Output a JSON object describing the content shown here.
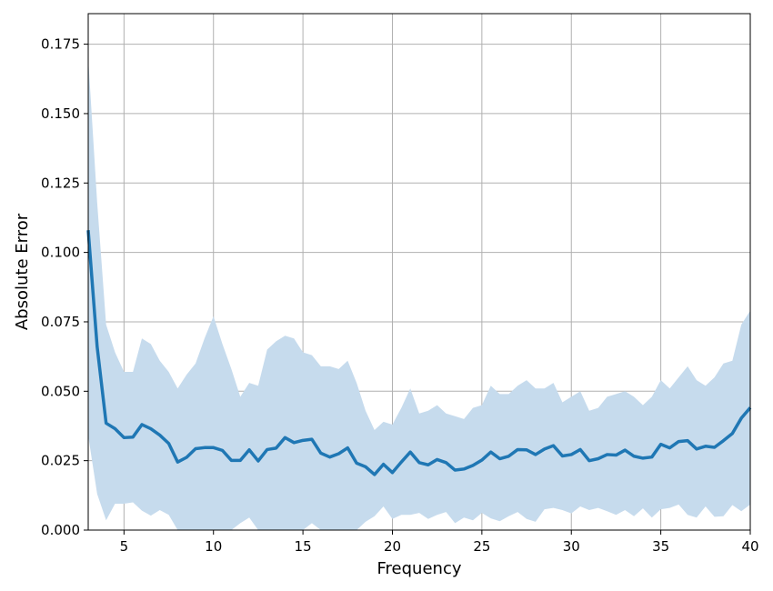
{
  "chart_data": {
    "type": "line",
    "title": "",
    "xlabel": "Frequency",
    "ylabel": "Absolute Error",
    "xlim": [
      3,
      40
    ],
    "ylim": [
      0,
      0.186
    ],
    "x_ticks": [
      5,
      10,
      15,
      20,
      25,
      30,
      35,
      40
    ],
    "y_ticks": [
      0.0,
      0.025,
      0.05,
      0.075,
      0.1,
      0.125,
      0.15,
      0.175
    ],
    "x_tick_labels": [
      "5",
      "10",
      "15",
      "20",
      "25",
      "30",
      "35",
      "40"
    ],
    "y_tick_labels": [
      "0.000",
      "0.025",
      "0.050",
      "0.075",
      "0.100",
      "0.125",
      "0.150",
      "0.175"
    ],
    "grid": true,
    "legend": "none",
    "colors": {
      "line": "#1f77b4",
      "band": "#c6dbed",
      "grid": "#b0b0b0"
    },
    "x": [
      3,
      3.5,
      4,
      4.5,
      5,
      5.5,
      6,
      6.5,
      7,
      7.5,
      8,
      8.5,
      9,
      9.5,
      10,
      10.5,
      11,
      11.5,
      12,
      12.5,
      13,
      13.5,
      14,
      14.5,
      15,
      15.5,
      16,
      16.5,
      17,
      17.5,
      18,
      18.5,
      19,
      19.5,
      20,
      20.5,
      21,
      21.5,
      22,
      22.5,
      23,
      23.5,
      24,
      24.5,
      25,
      25.5,
      26,
      26.5,
      27,
      27.5,
      28,
      28.5,
      29,
      29.5,
      30,
      30.5,
      31,
      31.5,
      32,
      32.5,
      33,
      33.5,
      34,
      34.5,
      35,
      35.5,
      36,
      36.5,
      37,
      37.5,
      38,
      38.5,
      39,
      39.5,
      40
    ],
    "series": [
      {
        "values": [
          0.108,
          0.066,
          0.0385,
          0.0365,
          0.0333,
          0.0335,
          0.038,
          0.0365,
          0.0342,
          0.0312,
          0.0245,
          0.0262,
          0.0293,
          0.0297,
          0.0297,
          0.0287,
          0.0251,
          0.0251,
          0.0289,
          0.0249,
          0.029,
          0.0295,
          0.0333,
          0.0315,
          0.0323,
          0.0327,
          0.0277,
          0.0263,
          0.0275,
          0.0296,
          0.0241,
          0.0228,
          0.02,
          0.0237,
          0.0207,
          0.0245,
          0.0281,
          0.0243,
          0.0235,
          0.0254,
          0.0243,
          0.0216,
          0.022,
          0.0233,
          0.0252,
          0.0281,
          0.0257,
          0.0266,
          0.029,
          0.0289,
          0.0272,
          0.0292,
          0.0304,
          0.0267,
          0.0272,
          0.029,
          0.025,
          0.0257,
          0.0272,
          0.027,
          0.0288,
          0.0266,
          0.0259,
          0.0263,
          0.0309,
          0.0296,
          0.0319,
          0.0322,
          0.0292,
          0.0302,
          0.0298,
          0.0322,
          0.0348,
          0.0403,
          0.0441
        ],
        "upper": [
          0.17,
          0.118,
          0.074,
          0.064,
          0.057,
          0.057,
          0.069,
          0.067,
          0.061,
          0.057,
          0.051,
          0.056,
          0.06,
          0.069,
          0.077,
          0.067,
          0.058,
          0.048,
          0.053,
          0.052,
          0.065,
          0.068,
          0.07,
          0.069,
          0.064,
          0.063,
          0.059,
          0.059,
          0.058,
          0.061,
          0.053,
          0.043,
          0.036,
          0.039,
          0.038,
          0.044,
          0.051,
          0.042,
          0.043,
          0.045,
          0.042,
          0.041,
          0.04,
          0.044,
          0.045,
          0.052,
          0.049,
          0.049,
          0.052,
          0.054,
          0.051,
          0.051,
          0.053,
          0.046,
          0.048,
          0.05,
          0.043,
          0.044,
          0.048,
          0.049,
          0.05,
          0.048,
          0.045,
          0.048,
          0.054,
          0.051,
          0.055,
          0.059,
          0.054,
          0.052,
          0.055,
          0.06,
          0.061,
          0.074,
          0.079
        ],
        "lower": [
          0.034,
          0.013,
          0.0035,
          0.0095,
          0.0095,
          0.01,
          0.007,
          0.0052,
          0.0072,
          0.0055,
          0.0,
          0.0,
          0.0,
          0.0,
          0.0,
          0.0,
          0.0,
          0.0025,
          0.0045,
          0.0,
          0.0,
          0.0,
          0.0,
          0.0,
          0.0,
          0.0025,
          0.0,
          0.0,
          0.0,
          0.0,
          0.0,
          0.003,
          0.005,
          0.0085,
          0.004,
          0.0055,
          0.0055,
          0.0062,
          0.004,
          0.0055,
          0.0065,
          0.0025,
          0.0045,
          0.0035,
          0.0062,
          0.0042,
          0.0032,
          0.005,
          0.0065,
          0.004,
          0.003,
          0.0075,
          0.008,
          0.0072,
          0.006,
          0.0085,
          0.0072,
          0.008,
          0.0068,
          0.0055,
          0.0072,
          0.005,
          0.0078,
          0.0045,
          0.0075,
          0.008,
          0.0092,
          0.0055,
          0.0045,
          0.0085,
          0.0048,
          0.005,
          0.009,
          0.0068,
          0.0092
        ]
      }
    ]
  }
}
